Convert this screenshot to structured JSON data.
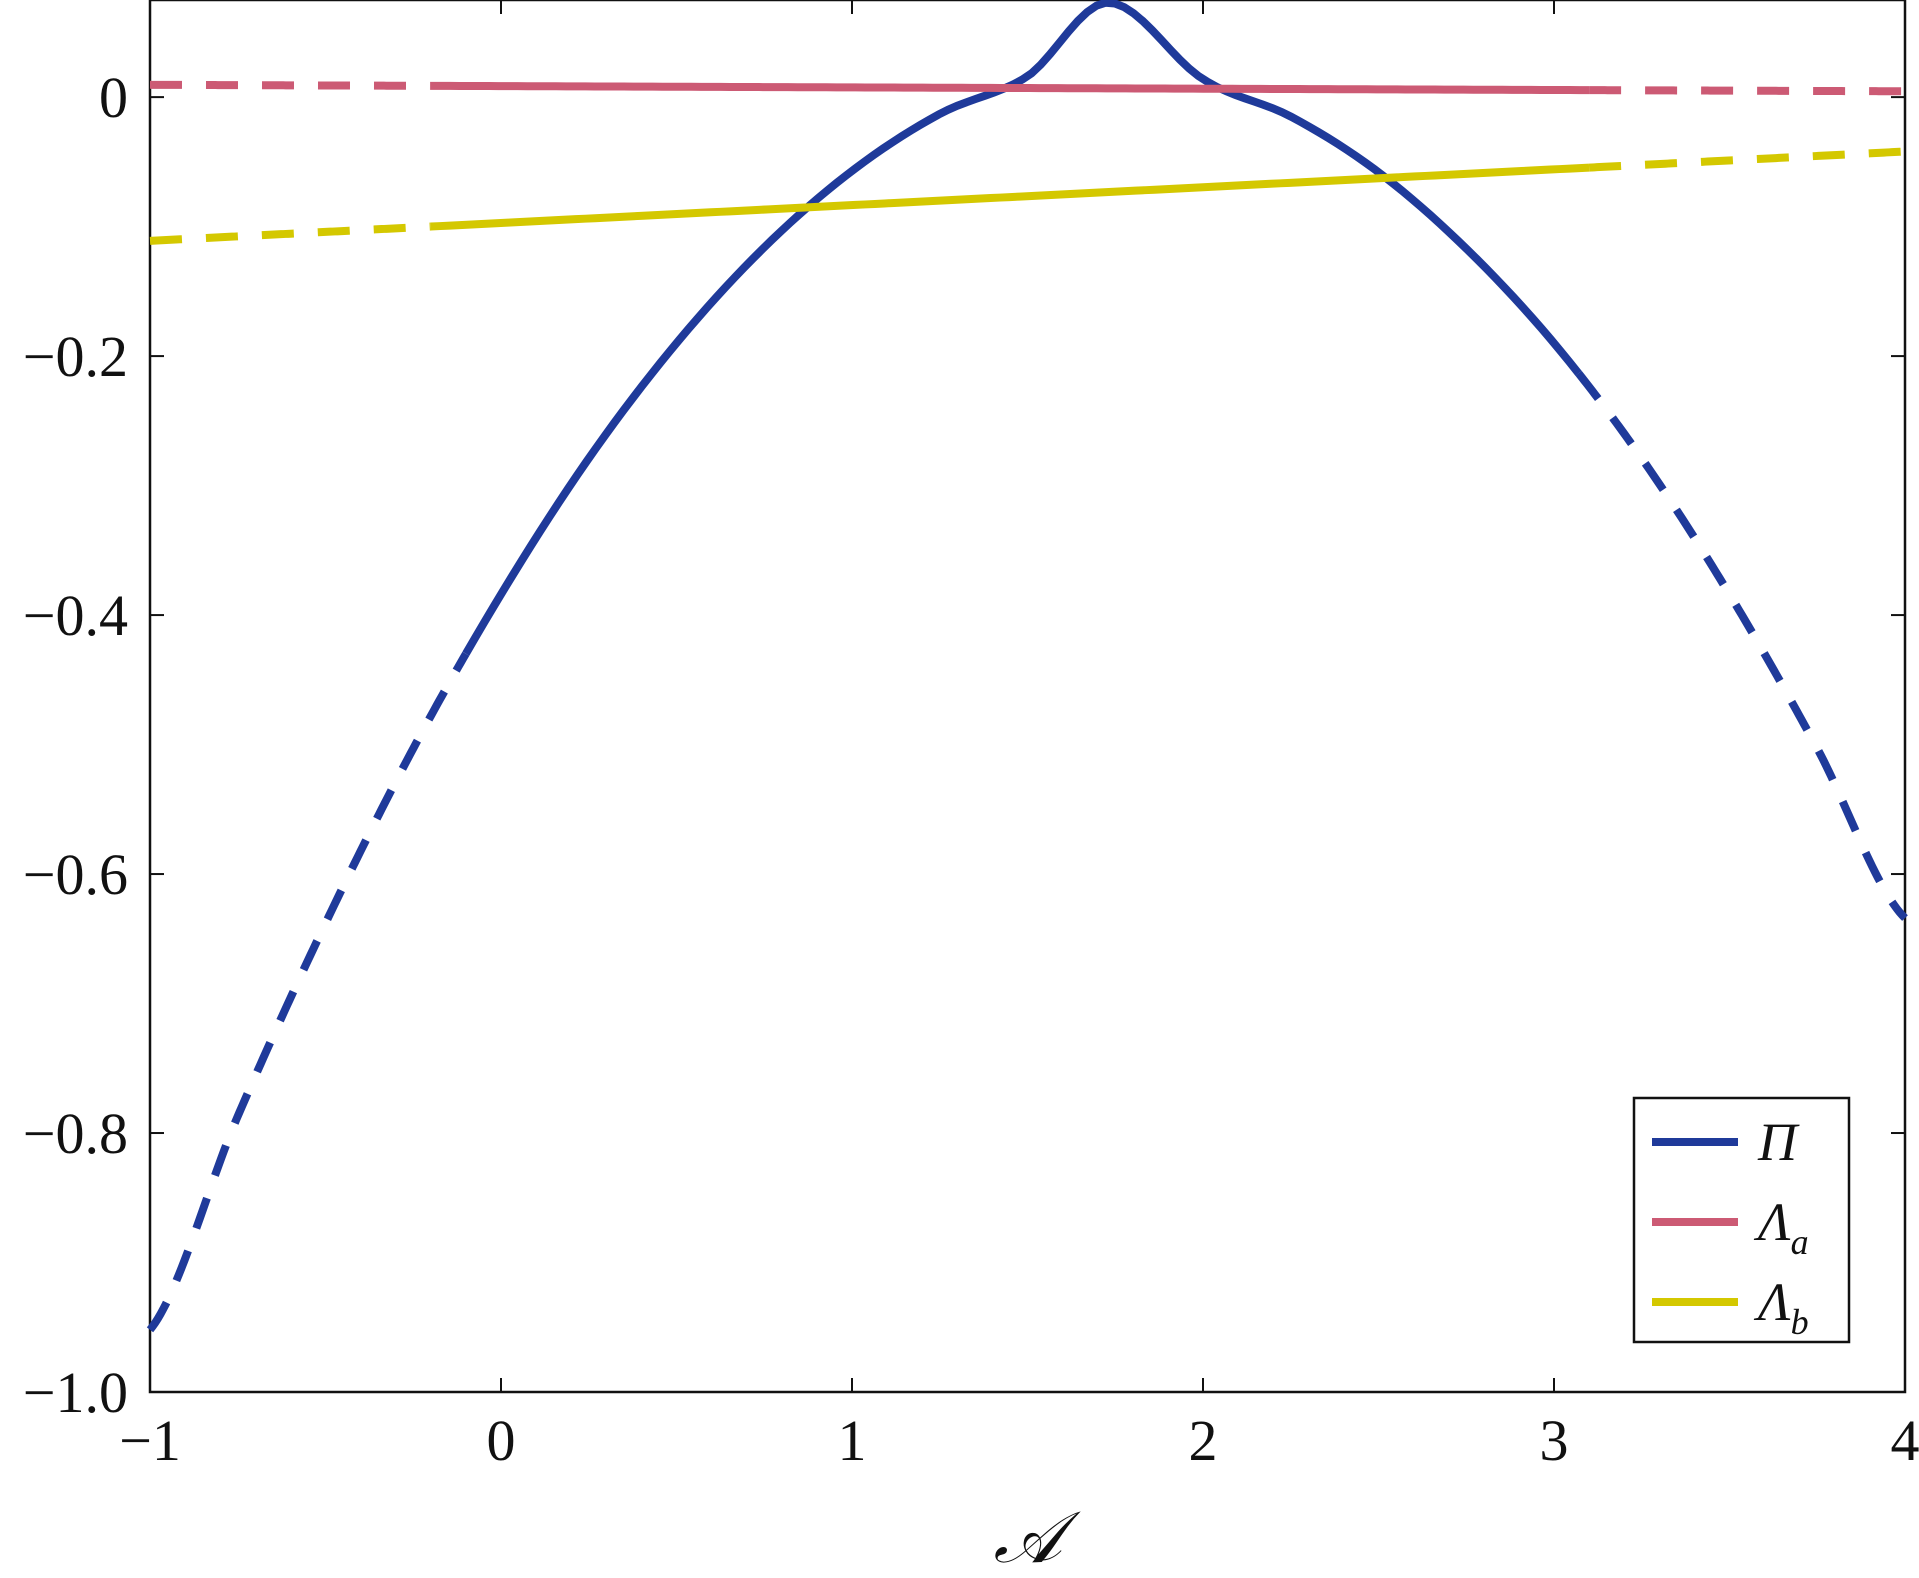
{
  "chart_data": {
    "type": "line",
    "title": "",
    "xlabel": "𝒜",
    "ylabel": "",
    "xlim": [
      -1,
      4
    ],
    "ylim": [
      -1.0,
      0.075
    ],
    "xticks": [
      -1,
      0,
      1,
      2,
      3,
      4
    ],
    "xtick_labels": [
      "−1",
      "0",
      "1",
      "2",
      "3",
      "4"
    ],
    "yticks": [
      0,
      -0.2,
      -0.4,
      -0.6,
      -0.8,
      -1.0
    ],
    "ytick_labels": [
      "0",
      "−0.2",
      "−0.4",
      "−0.6",
      "−0.8",
      "−1.0"
    ],
    "grid": false,
    "legend_position": "bottom-right",
    "series": [
      {
        "name": "Π",
        "name_sub": "",
        "color": "#1f3a9a",
        "solid_range": [
          -0.1,
          3.07
        ],
        "x": [
          -1.0,
          -0.75,
          -0.5,
          -0.25,
          0.0,
          0.25,
          0.5,
          0.75,
          1.0,
          1.25,
          1.5,
          1.73,
          2.0,
          2.25,
          2.5,
          2.75,
          3.0,
          3.25,
          3.5,
          3.75,
          4.0
        ],
        "y": [
          -0.952,
          -0.787,
          -0.638,
          -0.503,
          -0.384,
          -0.279,
          -0.19,
          -0.116,
          -0.057,
          -0.013,
          0.016,
          0.073,
          0.014,
          -0.015,
          -0.058,
          -0.117,
          -0.19,
          -0.279,
          -0.384,
          -0.503,
          -0.634
        ]
      },
      {
        "name": "Λ",
        "name_sub": "a",
        "color": "#cc5a74",
        "solid_range": [
          -0.2,
          3.1
        ],
        "x": [
          -1.0,
          4.0
        ],
        "y": [
          0.0095,
          0.0045
        ]
      },
      {
        "name": "Λ",
        "name_sub": "b",
        "color": "#d4c800",
        "solid_range": [
          -0.2,
          3.1
        ],
        "x": [
          -1.0,
          4.0
        ],
        "y": [
          -0.111,
          -0.042
        ]
      }
    ]
  }
}
